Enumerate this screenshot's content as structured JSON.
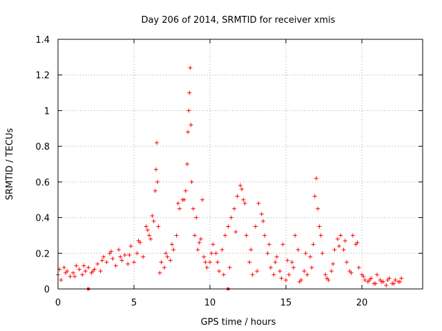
{
  "chart_data": {
    "type": "scatter",
    "title": "Day 206 of 2014, SRMTID for receiver xmis",
    "xlabel": "GPS time / hours",
    "ylabel": "SRMTID / TECUs",
    "xlim": [
      0,
      24
    ],
    "ylim": [
      0,
      1.4
    ],
    "xticks": [
      0,
      5,
      10,
      15,
      20
    ],
    "xtick_labels": [
      "0",
      "5",
      "10",
      "15",
      "20"
    ],
    "yticks": [
      0,
      0.2,
      0.4,
      0.6,
      0.8,
      1.0,
      1.2,
      1.4
    ],
    "ytick_labels": [
      "0",
      "0.2",
      "0.4",
      "0.6",
      "0.8",
      "1",
      "1.2",
      "1.4"
    ],
    "grid": true,
    "marker": "+",
    "color": "#ff0000",
    "series": [
      {
        "name": "SRMTID",
        "x": [
          0.0,
          0.2,
          0.4,
          0.6,
          0.8,
          1.0,
          1.2,
          1.4,
          1.6,
          1.8,
          2.0,
          2.2,
          2.4,
          2.6,
          2.8,
          3.0,
          3.2,
          3.4,
          3.6,
          3.8,
          4.0,
          4.2,
          4.4,
          4.6,
          4.8,
          5.0,
          5.2,
          5.4,
          5.6,
          5.8,
          6.0,
          6.2,
          6.3,
          6.4,
          6.45,
          6.5,
          6.55,
          6.6,
          6.8,
          7.0,
          7.2,
          7.4,
          7.6,
          7.8,
          8.0,
          8.2,
          8.4,
          8.5,
          8.55,
          8.6,
          8.65,
          8.7,
          8.8,
          8.9,
          9.0,
          9.2,
          9.4,
          9.5,
          9.6,
          9.8,
          10.0,
          10.2,
          10.4,
          10.6,
          10.8,
          11.0,
          11.2,
          11.4,
          11.6,
          11.8,
          12.0,
          12.1,
          12.2,
          12.4,
          12.6,
          12.8,
          13.0,
          13.2,
          13.4,
          13.6,
          13.8,
          14.0,
          14.2,
          14.4,
          14.6,
          14.8,
          15.0,
          15.2,
          15.4,
          15.6,
          15.8,
          16.0,
          16.2,
          16.4,
          16.6,
          16.8,
          16.9,
          17.0,
          17.1,
          17.2,
          17.4,
          17.6,
          17.8,
          18.0,
          18.2,
          18.4,
          18.6,
          18.8,
          19.0,
          19.2,
          19.4,
          19.6,
          19.8,
          20.0,
          20.2,
          20.4,
          20.6,
          20.8,
          21.0,
          21.2,
          21.4,
          21.6,
          21.8,
          22.0,
          22.2,
          22.4,
          22.6,
          0.1,
          0.5,
          1.1,
          1.7,
          2.3,
          2.9,
          3.5,
          4.1,
          4.7,
          5.3,
          5.9,
          6.1,
          6.7,
          7.1,
          7.5,
          7.9,
          8.3,
          8.75,
          9.1,
          9.3,
          9.7,
          10.1,
          10.5,
          10.9,
          11.3,
          11.7,
          12.3,
          12.7,
          13.1,
          13.5,
          13.9,
          14.3,
          14.7,
          15.1,
          15.5,
          15.9,
          16.3,
          16.7,
          17.3,
          17.7,
          18.1,
          18.5,
          18.9,
          19.3,
          19.7,
          20.1,
          20.5,
          20.9,
          21.3,
          21.7,
          22.1,
          22.5
        ],
        "y": [
          0.08,
          0.05,
          0.12,
          0.1,
          0.07,
          0.09,
          0.13,
          0.11,
          0.08,
          0.1,
          0.12,
          0.09,
          0.11,
          0.14,
          0.1,
          0.18,
          0.15,
          0.2,
          0.17,
          0.13,
          0.22,
          0.16,
          0.19,
          0.14,
          0.24,
          0.15,
          0.2,
          0.26,
          0.18,
          0.35,
          0.3,
          0.41,
          0.38,
          0.55,
          0.67,
          0.82,
          0.6,
          0.35,
          0.15,
          0.12,
          0.18,
          0.16,
          0.22,
          0.3,
          0.45,
          0.5,
          0.55,
          0.7,
          0.88,
          1.0,
          1.1,
          1.24,
          0.6,
          0.45,
          0.3,
          0.22,
          0.28,
          0.5,
          0.18,
          0.12,
          0.15,
          0.25,
          0.2,
          0.1,
          0.22,
          0.3,
          0.35,
          0.4,
          0.45,
          0.52,
          0.58,
          0.56,
          0.5,
          0.3,
          0.15,
          0.08,
          0.35,
          0.48,
          0.42,
          0.3,
          0.2,
          0.12,
          0.08,
          0.18,
          0.1,
          0.25,
          0.05,
          0.08,
          0.15,
          0.3,
          0.22,
          0.05,
          0.1,
          0.08,
          0.18,
          0.25,
          0.52,
          0.62,
          0.45,
          0.35,
          0.2,
          0.08,
          0.05,
          0.1,
          0.22,
          0.28,
          0.3,
          0.22,
          0.15,
          0.1,
          0.3,
          0.25,
          0.12,
          0.08,
          0.05,
          0.04,
          0.06,
          0.03,
          0.08,
          0.05,
          0.04,
          0.02,
          0.06,
          0.03,
          0.05,
          0.04,
          0.06,
          0.11,
          0.09,
          0.07,
          0.13,
          0.1,
          0.16,
          0.21,
          0.18,
          0.19,
          0.27,
          0.33,
          0.28,
          0.09,
          0.2,
          0.25,
          0.48,
          0.5,
          0.92,
          0.4,
          0.26,
          0.15,
          0.2,
          0.15,
          0.08,
          0.12,
          0.32,
          0.48,
          0.22,
          0.1,
          0.38,
          0.25,
          0.15,
          0.06,
          0.16,
          0.12,
          0.04,
          0.2,
          0.12,
          0.3,
          0.06,
          0.14,
          0.24,
          0.27,
          0.09,
          0.26,
          0.07,
          0.05,
          0.03,
          0.04,
          0.05,
          0.03,
          0.04
        ]
      }
    ],
    "x_axis_markers": [
      2.0,
      11.2
    ]
  }
}
